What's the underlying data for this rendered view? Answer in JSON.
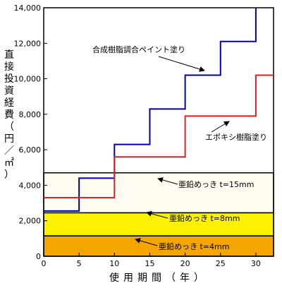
{
  "chart_data": {
    "type": "line",
    "title": "",
    "xlabel": "使用期間（年）",
    "ylabel": "直接投資経費（円／㎡）",
    "xlim": [
      0,
      32.5
    ],
    "ylim": [
      0,
      14000
    ],
    "x_ticks": [
      0,
      5,
      10,
      15,
      20,
      25,
      30
    ],
    "y_ticks": [
      0,
      2000,
      4000,
      6000,
      8000,
      10000,
      12000,
      14000
    ],
    "x_tick_labels": [
      "0",
      "5",
      "10",
      "15",
      "20",
      "25",
      "30"
    ],
    "y_tick_labels": [
      "0",
      "2,000",
      "4,000",
      "6,000",
      "8,000",
      "10,000",
      "12,000",
      "14,000"
    ],
    "bands": [
      {
        "label": "亜鉛めっき t=4mm",
        "from": 0,
        "to": 1150,
        "color": "#f5a500"
      },
      {
        "label": "亜鉛めっき t=8mm",
        "from": 1150,
        "to": 2450,
        "color": "#fbf100"
      },
      {
        "label": "亜鉛めっき t=15mm",
        "from": 2450,
        "to": 4700,
        "color": "#fffdf2"
      }
    ],
    "series": [
      {
        "name": "合成樹脂調合ペイント塗り",
        "color": "#0000aa",
        "x": [
          0,
          5,
          5,
          10,
          10,
          15,
          15,
          20,
          20,
          25,
          25,
          30,
          30
        ],
        "y": [
          2550,
          2550,
          4400,
          4400,
          6300,
          6300,
          8300,
          8300,
          10200,
          10200,
          12100,
          12100,
          14000
        ]
      },
      {
        "name": "エポキシ樹脂塗り",
        "color": "#dd2222",
        "x": [
          0,
          10,
          10,
          20,
          20,
          30,
          30,
          32.5
        ],
        "y": [
          3300,
          3300,
          5600,
          5600,
          7900,
          7900,
          10200,
          10200
        ]
      }
    ]
  }
}
